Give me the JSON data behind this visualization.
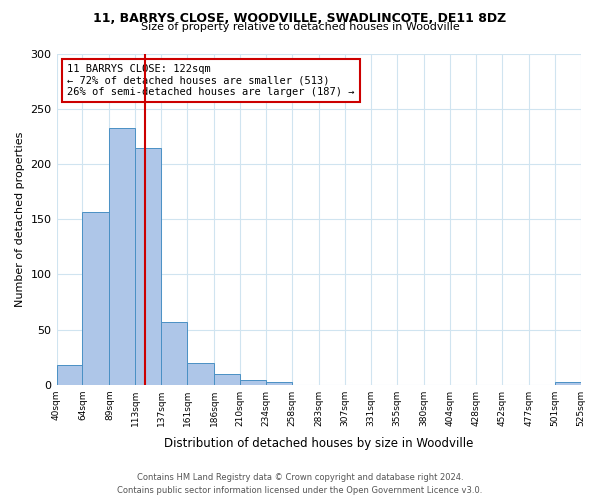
{
  "title1": "11, BARRYS CLOSE, WOODVILLE, SWADLINCOTE, DE11 8DZ",
  "title2": "Size of property relative to detached houses in Woodville",
  "xlabel": "Distribution of detached houses by size in Woodville",
  "ylabel": "Number of detached properties",
  "bin_edges": [
    40,
    64,
    89,
    113,
    137,
    161,
    186,
    210,
    234,
    258,
    283,
    307,
    331,
    355,
    380,
    404,
    428,
    452,
    477,
    501,
    525
  ],
  "bin_labels": [
    "40sqm",
    "64sqm",
    "89sqm",
    "113sqm",
    "137sqm",
    "161sqm",
    "186sqm",
    "210sqm",
    "234sqm",
    "258sqm",
    "283sqm",
    "307sqm",
    "331sqm",
    "355sqm",
    "380sqm",
    "404sqm",
    "428sqm",
    "452sqm",
    "477sqm",
    "501sqm",
    "525sqm"
  ],
  "counts": [
    18,
    157,
    233,
    215,
    57,
    20,
    10,
    4,
    2,
    0,
    0,
    0,
    0,
    0,
    0,
    0,
    0,
    0,
    0,
    2
  ],
  "bar_facecolor": "#aec6e8",
  "bar_edgecolor": "#4a90c4",
  "grid_color": "#d0e4f0",
  "property_line_x": 122,
  "property_line_color": "#cc0000",
  "annotation_text": "11 BARRYS CLOSE: 122sqm\n← 72% of detached houses are smaller (513)\n26% of semi-detached houses are larger (187) →",
  "annotation_box_edgecolor": "#cc0000",
  "ylim": [
    0,
    300
  ],
  "yticks": [
    0,
    50,
    100,
    150,
    200,
    250,
    300
  ],
  "footer": "Contains HM Land Registry data © Crown copyright and database right 2024.\nContains public sector information licensed under the Open Government Licence v3.0.",
  "bg_color": "#ffffff"
}
